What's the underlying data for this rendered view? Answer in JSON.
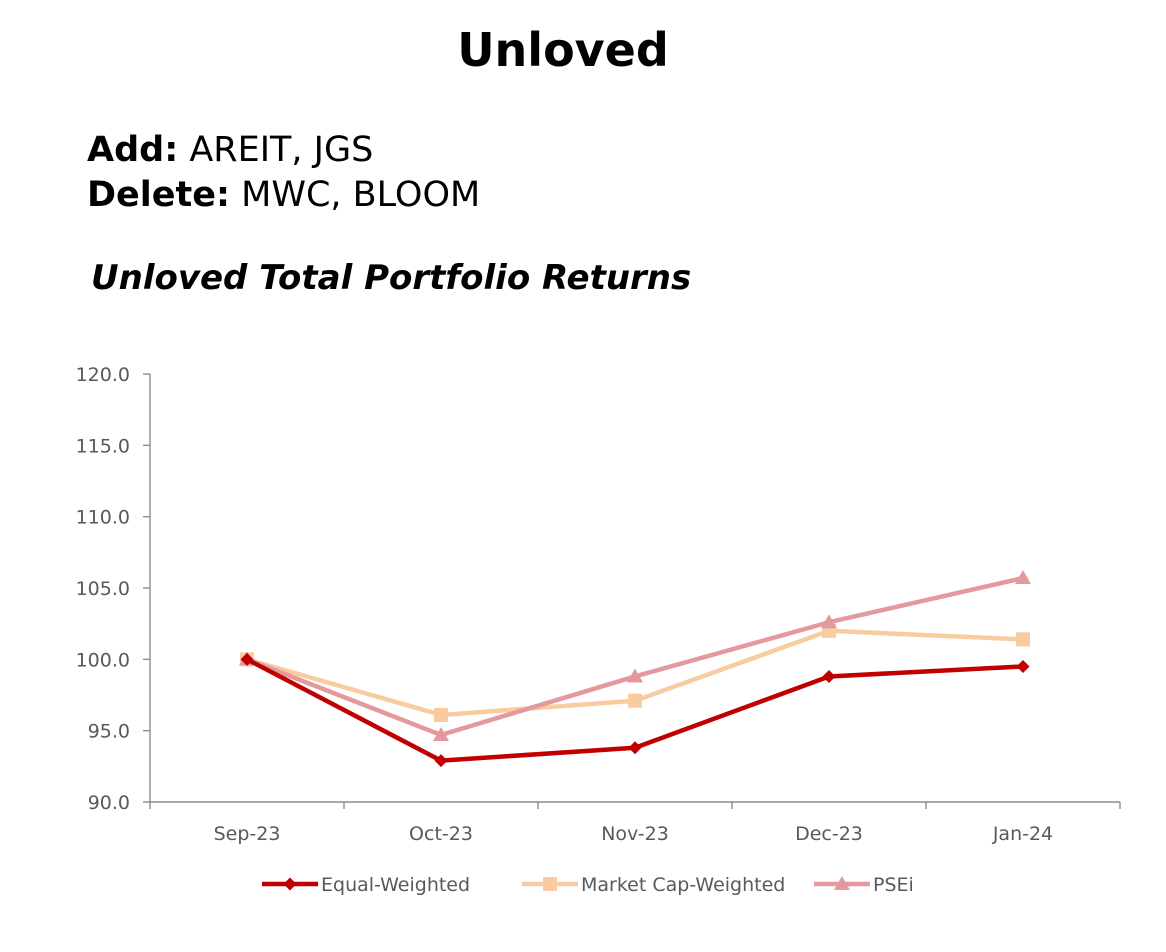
{
  "header": {
    "title": "Unloved",
    "add_label": "Add:",
    "add_value": "AREIT, JGS",
    "delete_label": "Delete:",
    "delete_value": "MWC, BLOOM",
    "subtitle": "Unloved Total Portfolio Returns"
  },
  "chart_data": {
    "type": "line",
    "title": "Unloved Total Portfolio Returns",
    "xlabel": "",
    "ylabel": "",
    "categories": [
      "Sep-23",
      "Oct-23",
      "Nov-23",
      "Dec-23",
      "Jan-24"
    ],
    "ylim": [
      90.0,
      120.0
    ],
    "yticks": [
      "90.0",
      "95.0",
      "100.0",
      "105.0",
      "110.0",
      "115.0",
      "120.0"
    ],
    "grid": false,
    "legend_position": "bottom",
    "series": [
      {
        "name": "Equal-Weighted",
        "values": [
          100.0,
          92.9,
          93.8,
          98.8,
          99.5
        ],
        "color": "#c00000",
        "marker": "diamond"
      },
      {
        "name": "Market Cap-Weighted",
        "values": [
          100.0,
          96.1,
          97.1,
          102.0,
          101.4
        ],
        "color": "#f8cba0",
        "marker": "square"
      },
      {
        "name": "PSEi",
        "values": [
          100.0,
          94.7,
          98.8,
          102.6,
          105.7
        ],
        "color": "#e49a9c",
        "marker": "triangle"
      }
    ]
  }
}
